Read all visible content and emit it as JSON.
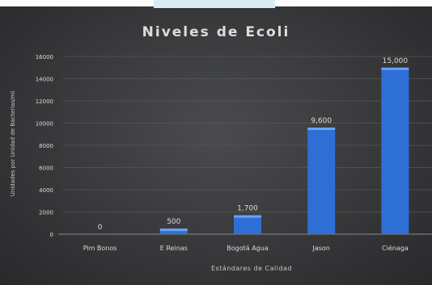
{
  "chart_data": {
    "type": "bar",
    "title": "Niveles de Ecoli",
    "ylabel": "Unidades por Unidad de Bacterias/ml",
    "xlabel": "Estándares de Calidad",
    "categories": [
      "Pim Bonos",
      "E Reinas",
      "Bogotá Agua",
      "Jason",
      "Ciénaga"
    ],
    "values": [
      0,
      500,
      1700,
      9600,
      15000
    ],
    "value_labels": [
      "0",
      "500",
      "1,700",
      "9,600",
      "15,000"
    ],
    "yticks": [
      0,
      2000,
      4000,
      6000,
      8000,
      10000,
      12000,
      14000,
      16000
    ],
    "ytick_labels": [
      "0",
      "2000",
      "4000",
      "6000",
      "8000",
      "10000",
      "12000",
      "14000",
      "16000"
    ],
    "ylim": [
      0,
      16000
    ],
    "grid": true,
    "bar_color": "#2e6fd6",
    "bar_highlight": "#6aa3f5",
    "text_color": "#dcdcdc",
    "grid_color": "#55575a"
  }
}
